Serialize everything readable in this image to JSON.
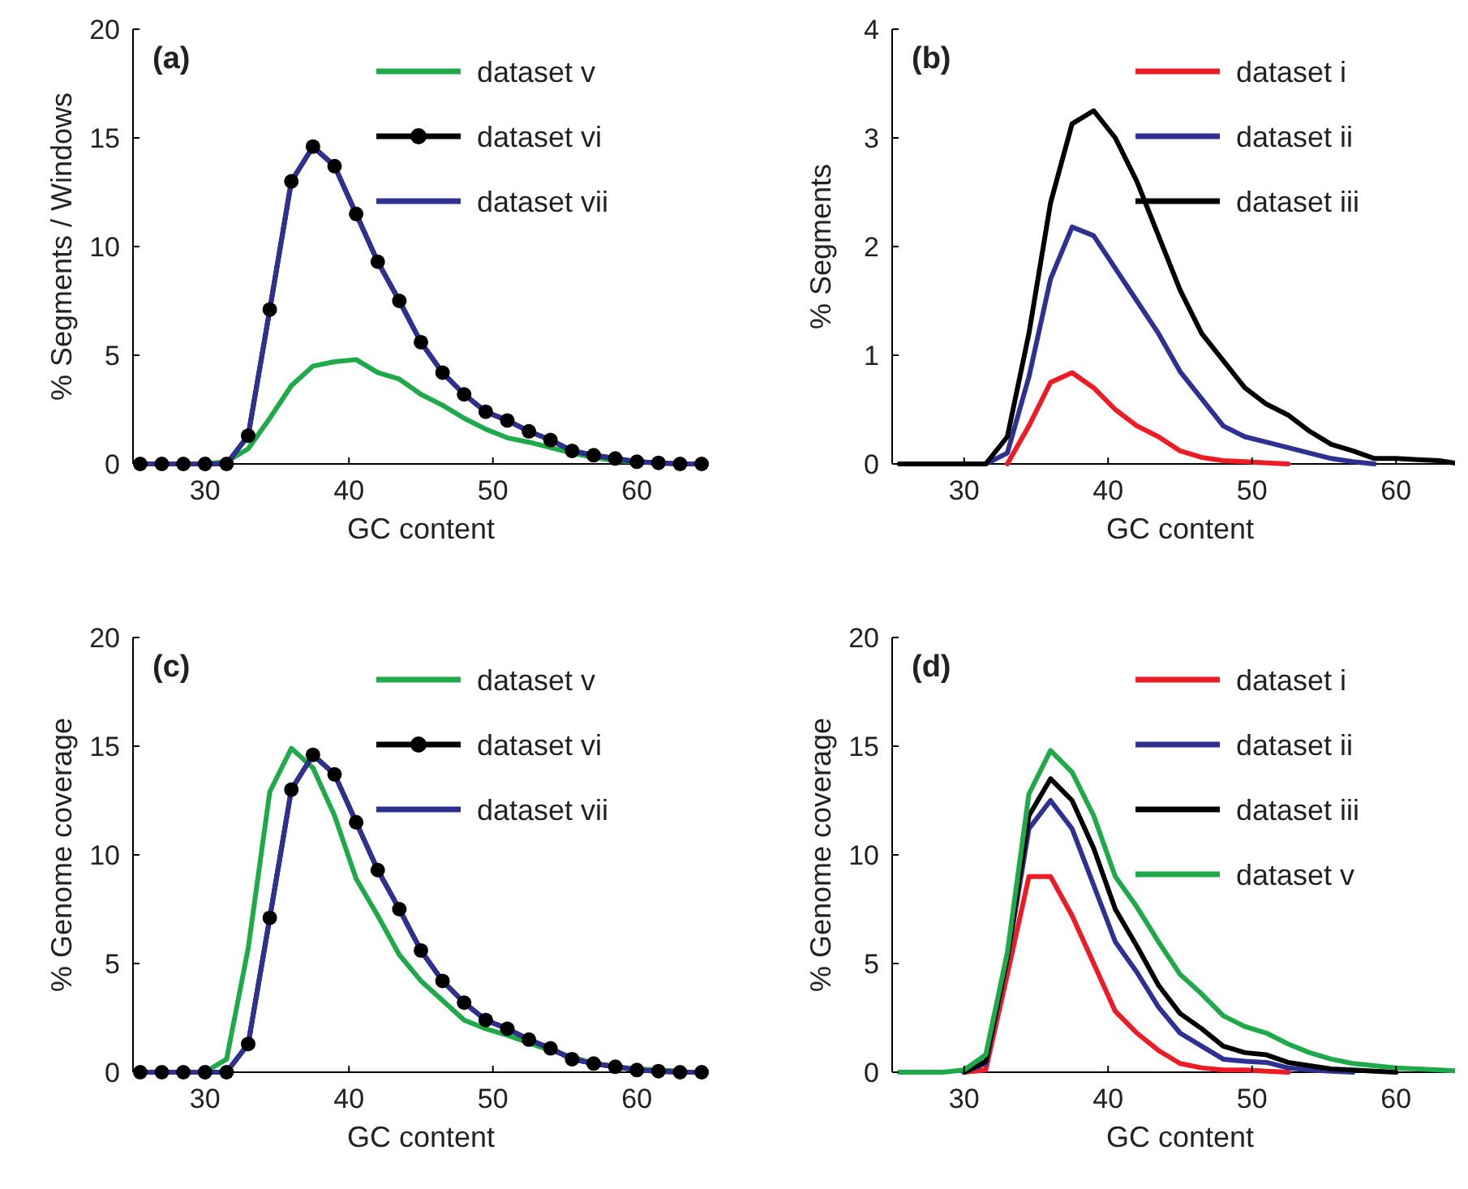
{
  "chart_data": [
    {
      "type": "line",
      "title": "(a)",
      "xlabel": "GC content",
      "ylabel": "% Segments / Windows",
      "xlim": [
        25,
        65
      ],
      "xticks": [
        30,
        40,
        50,
        60
      ],
      "ylim": [
        0,
        20
      ],
      "yticks": [
        0,
        5,
        10,
        15,
        20
      ],
      "legend": "top right",
      "grid": false,
      "x": [
        25.5,
        27,
        28.5,
        30,
        31.5,
        33,
        34.5,
        36,
        37.5,
        39,
        40.5,
        42,
        43.5,
        45,
        46.5,
        48,
        49.5,
        51,
        52.5,
        54,
        55.5,
        57,
        58.5,
        60,
        61.5,
        63,
        64.5
      ],
      "series": [
        {
          "name": "dataset v",
          "color": "#1faa4a",
          "marker": "none",
          "values": [
            null,
            null,
            null,
            0,
            0.1,
            0.7,
            2.1,
            3.6,
            4.5,
            4.7,
            4.8,
            4.2,
            3.9,
            3.2,
            2.7,
            2.1,
            1.6,
            1.2,
            1,
            0.75,
            0.5,
            0.3,
            0.15,
            0.1,
            0.05,
            null,
            null
          ]
        },
        {
          "name": "dataset vi",
          "color": "#000000",
          "marker": "circle",
          "values": [
            0,
            0,
            0,
            0,
            0,
            1.3,
            7.1,
            13,
            14.6,
            13.7,
            11.5,
            9.3,
            7.5,
            5.6,
            4.2,
            3.2,
            2.4,
            2,
            1.5,
            1.1,
            0.6,
            0.4,
            0.25,
            0.1,
            0.05,
            0,
            0
          ]
        },
        {
          "name": "dataset vii",
          "color": "#2e3192",
          "marker": "none",
          "values": [
            0,
            0,
            0,
            0,
            0,
            1.3,
            7.1,
            13,
            14.6,
            13.7,
            11.5,
            9.3,
            7.5,
            5.6,
            4.2,
            3.2,
            2.4,
            2,
            1.5,
            1.1,
            0.6,
            0.4,
            0.25,
            0.1,
            0.05,
            0,
            0
          ]
        }
      ]
    },
    {
      "type": "line",
      "title": "(b)",
      "xlabel": "GC content",
      "ylabel": "% Segments",
      "xlim": [
        25,
        65
      ],
      "xticks": [
        30,
        40,
        50,
        60
      ],
      "ylim": [
        0,
        4
      ],
      "yticks": [
        0,
        1,
        2,
        3,
        4
      ],
      "legend": "top right",
      "grid": false,
      "x": [
        25.5,
        27,
        28.5,
        30,
        31.5,
        33,
        34.5,
        36,
        37.5,
        39,
        40.5,
        42,
        43.5,
        45,
        46.5,
        48,
        49.5,
        51,
        52.5,
        54,
        55.5,
        57,
        58.5,
        60,
        61.5,
        63,
        64.5
      ],
      "series": [
        {
          "name": "dataset i",
          "color": "#ed1c24",
          "marker": "none",
          "values": [
            null,
            null,
            null,
            null,
            null,
            0,
            0.35,
            0.75,
            0.84,
            0.7,
            0.5,
            0.35,
            0.25,
            0.12,
            0.06,
            0.03,
            0.02,
            0.01,
            0,
            null,
            null,
            null,
            null,
            null,
            null,
            null,
            null
          ]
        },
        {
          "name": "dataset ii",
          "color": "#2e3192",
          "marker": "none",
          "values": [
            null,
            null,
            null,
            null,
            0,
            0.1,
            0.8,
            1.7,
            2.18,
            2.1,
            1.8,
            1.5,
            1.2,
            0.85,
            0.6,
            0.35,
            0.25,
            0.2,
            0.15,
            0.1,
            0.05,
            0.02,
            0,
            null,
            null,
            null,
            null
          ]
        },
        {
          "name": "dataset iii",
          "color": "#000000",
          "marker": "none",
          "values": [
            0,
            0,
            0,
            0,
            0,
            0.25,
            1.2,
            2.4,
            3.13,
            3.25,
            3,
            2.6,
            2.1,
            1.6,
            1.2,
            0.95,
            0.7,
            0.55,
            0.45,
            0.3,
            0.18,
            0.12,
            0.05,
            0.05,
            0.04,
            0.03,
            0
          ]
        }
      ]
    },
    {
      "type": "line",
      "title": "(c)",
      "xlabel": "GC content",
      "ylabel": "% Genome coverage",
      "xlim": [
        25,
        65
      ],
      "xticks": [
        30,
        40,
        50,
        60
      ],
      "ylim": [
        0,
        20
      ],
      "yticks": [
        0,
        5,
        10,
        15,
        20
      ],
      "legend": "top right",
      "grid": false,
      "x": [
        25.5,
        27,
        28.5,
        30,
        31.5,
        33,
        34.5,
        36,
        37.5,
        39,
        40.5,
        42,
        43.5,
        45,
        46.5,
        48,
        49.5,
        51,
        52.5,
        54,
        55.5,
        57,
        58.5,
        60,
        61.5,
        63,
        64.5
      ],
      "series": [
        {
          "name": "dataset v",
          "color": "#1faa4a",
          "marker": "none",
          "values": [
            null,
            null,
            null,
            0,
            0.6,
            5.7,
            12.9,
            14.9,
            14,
            11.8,
            8.9,
            7.2,
            5.4,
            4.2,
            3.3,
            2.4,
            2,
            1.7,
            1.35,
            1,
            0.7,
            0.4,
            0.25,
            0.15,
            0.1,
            0.05,
            null
          ]
        },
        {
          "name": "dataset vi",
          "color": "#000000",
          "marker": "circle",
          "values": [
            0,
            0,
            0,
            0,
            0,
            1.3,
            7.1,
            13,
            14.6,
            13.7,
            11.5,
            9.3,
            7.5,
            5.6,
            4.2,
            3.2,
            2.4,
            2,
            1.5,
            1.1,
            0.6,
            0.4,
            0.25,
            0.1,
            0.05,
            0,
            0
          ]
        },
        {
          "name": "dataset vii",
          "color": "#2e3192",
          "marker": "none",
          "values": [
            0,
            0,
            0,
            0,
            0,
            1.3,
            7.1,
            13,
            14.6,
            13.7,
            11.5,
            9.3,
            7.5,
            5.6,
            4.2,
            3.2,
            2.4,
            2,
            1.5,
            1.1,
            0.6,
            0.4,
            0.25,
            0.1,
            0.05,
            0,
            0
          ]
        }
      ]
    },
    {
      "type": "line",
      "title": "(d)",
      "xlabel": "GC content",
      "ylabel": "% Genome coverage",
      "xlim": [
        25,
        65
      ],
      "xticks": [
        30,
        40,
        50,
        60
      ],
      "ylim": [
        0,
        20
      ],
      "yticks": [
        0,
        5,
        10,
        15,
        20
      ],
      "legend": "top right",
      "grid": false,
      "x": [
        25.5,
        27,
        28.5,
        30,
        31.5,
        33,
        34.5,
        36,
        37.5,
        39,
        40.5,
        42,
        43.5,
        45,
        46.5,
        48,
        49.5,
        51,
        52.5,
        54,
        55.5,
        57,
        58.5,
        60,
        61.5,
        63,
        64.5
      ],
      "series": [
        {
          "name": "dataset i",
          "color": "#ed1c24",
          "marker": "none",
          "values": [
            null,
            null,
            null,
            0,
            0.1,
            4.5,
            9,
            9,
            7.2,
            5,
            2.8,
            1.8,
            1,
            0.4,
            0.2,
            0.1,
            0.1,
            0.05,
            0,
            null,
            null,
            null,
            null,
            null,
            null,
            null,
            null
          ]
        },
        {
          "name": "dataset ii",
          "color": "#2e3192",
          "marker": "none",
          "values": [
            null,
            null,
            null,
            0,
            0.4,
            5.2,
            11.2,
            12.5,
            11.2,
            8.6,
            6,
            4.6,
            3,
            1.8,
            1.2,
            0.6,
            0.5,
            0.45,
            0.2,
            0.1,
            0.05,
            0,
            null,
            null,
            null,
            null,
            null
          ]
        },
        {
          "name": "dataset iii",
          "color": "#000000",
          "marker": "none",
          "values": [
            null,
            null,
            null,
            0,
            0.5,
            5.3,
            11.8,
            13.5,
            12.5,
            10.3,
            7.5,
            5.8,
            4,
            2.7,
            2,
            1.2,
            0.9,
            0.8,
            0.45,
            0.3,
            0.15,
            0.1,
            0.05,
            0,
            null,
            null,
            null
          ]
        },
        {
          "name": "dataset v",
          "color": "#1faa4a",
          "marker": "none",
          "values": [
            0,
            0,
            0,
            0.1,
            0.8,
            5.5,
            12.8,
            14.8,
            13.8,
            11.8,
            9,
            7.6,
            6,
            4.5,
            3.6,
            2.6,
            2.1,
            1.8,
            1.3,
            0.9,
            0.6,
            0.4,
            0.3,
            0.2,
            0.15,
            0.1,
            0.05
          ]
        }
      ]
    }
  ]
}
